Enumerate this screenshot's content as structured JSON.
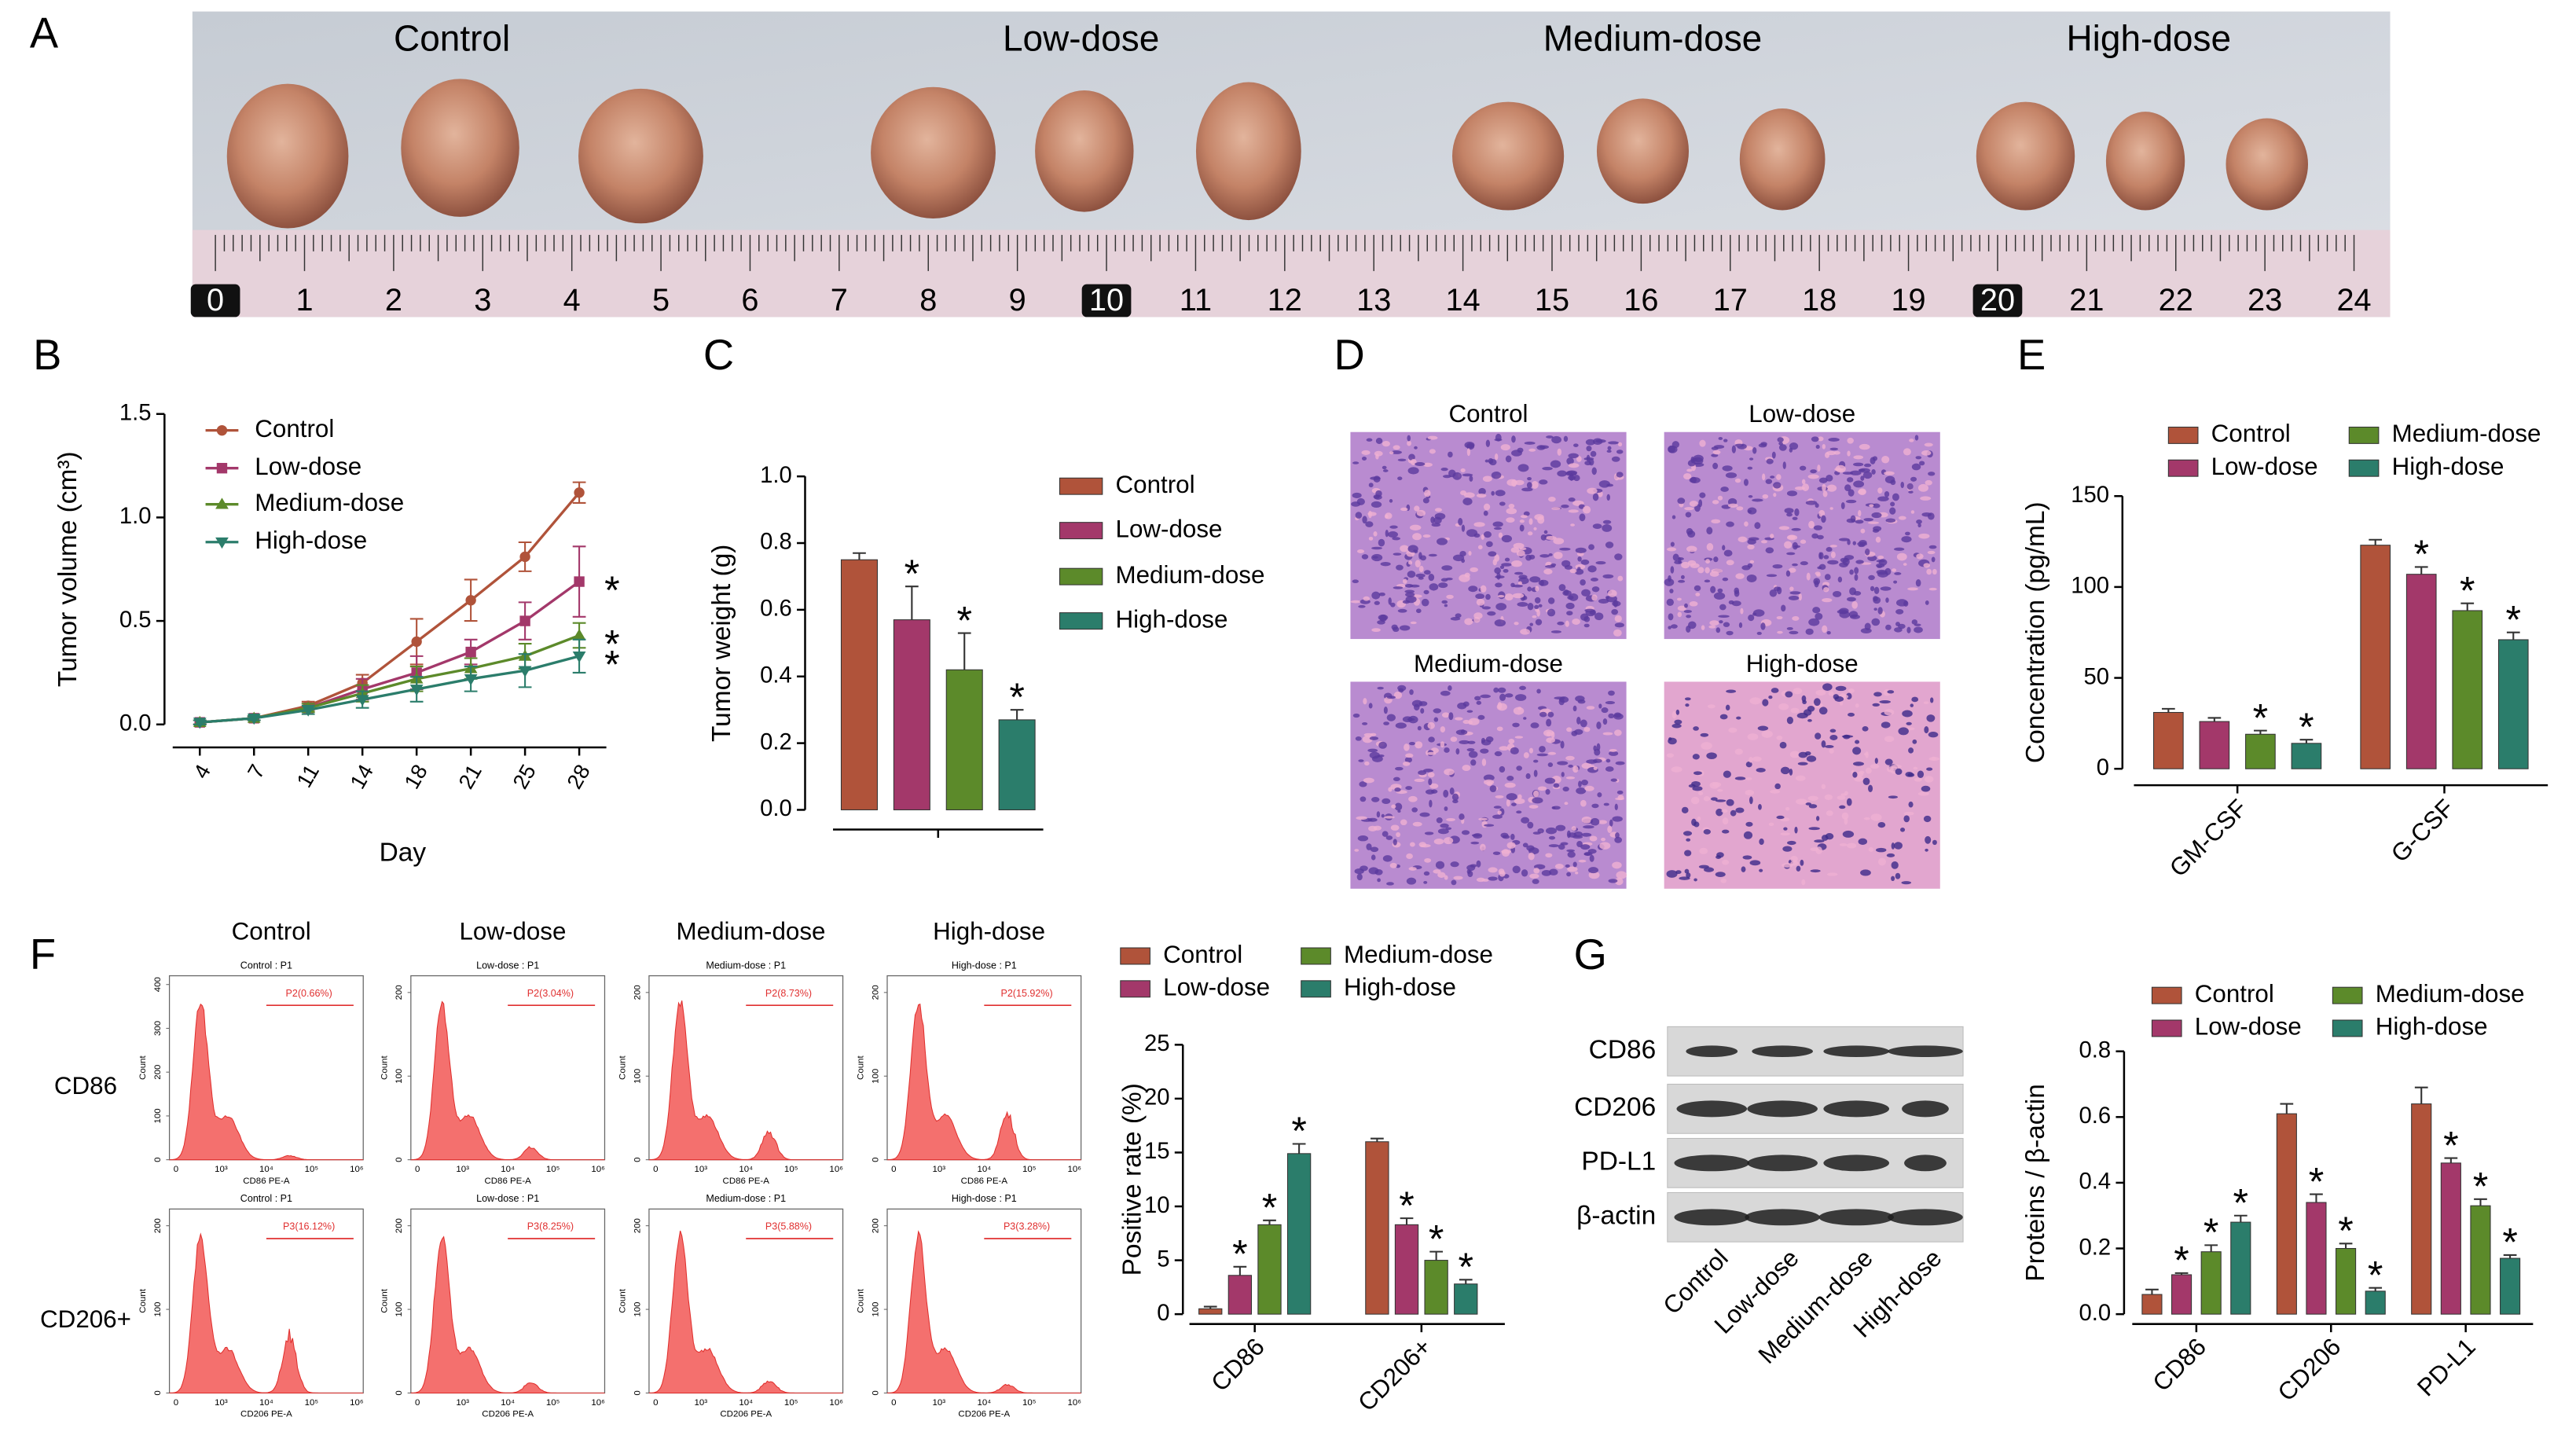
{
  "panel_labels": [
    "A",
    "B",
    "C",
    "D",
    "E",
    "F",
    "G"
  ],
  "photo": {
    "groups": [
      "Control",
      "Low-dose",
      "Medium-dose",
      "High-dose"
    ],
    "ruler": [
      0,
      1,
      2,
      3,
      4,
      5,
      6,
      7,
      8,
      9,
      10,
      11,
      12,
      13,
      14,
      15,
      16,
      17,
      18,
      19,
      20,
      21,
      22,
      23,
      24
    ]
  },
  "histology": {
    "labels": [
      "Control",
      "Low-dose",
      "Medium-dose",
      "High-dose"
    ]
  },
  "flow": {
    "columns": [
      "Control",
      "Low-dose",
      "Medium-dose",
      "High-dose"
    ],
    "rows": [
      "CD86",
      "CD206+"
    ],
    "xticks": [
      "0",
      "10³",
      "10⁴",
      "10⁵",
      "10⁶"
    ],
    "ylabel": "Count",
    "plots": [
      [
        {
          "title": "Control : P1",
          "gate": "P2(0.66%)",
          "xlabel": "CD86 PE-A",
          "ylim": [
            0,
            420
          ],
          "yticks": [
            0,
            100,
            200,
            300,
            400
          ]
        },
        {
          "title": "Low-dose : P1",
          "gate": "P2(3.04%)",
          "xlabel": "CD86 PE-A",
          "ylim": [
            0,
            220
          ],
          "yticks": [
            0,
            100,
            200
          ]
        },
        {
          "title": "Medium-dose : P1",
          "gate": "P2(8.73%)",
          "xlabel": "CD86 PE-A",
          "ylim": [
            0,
            220
          ],
          "yticks": [
            0,
            100,
            200
          ]
        },
        {
          "title": "High-dose : P1",
          "gate": "P2(15.92%)",
          "xlabel": "CD86 PE-A",
          "ylim": [
            0,
            220
          ],
          "yticks": [
            0,
            100,
            200
          ]
        }
      ],
      [
        {
          "title": "Control : P1",
          "gate": "P3(16.12%)",
          "xlabel": "CD206 PE-A",
          "ylim": [
            0,
            220
          ],
          "yticks": [
            0,
            100,
            200
          ]
        },
        {
          "title": "Low-dose : P1",
          "gate": "P3(8.25%)",
          "xlabel": "CD206 PE-A",
          "ylim": [
            0,
            220
          ],
          "yticks": [
            0,
            100,
            200
          ]
        },
        {
          "title": "Medium-dose : P1",
          "gate": "P3(5.88%)",
          "xlabel": "CD206 PE-A",
          "ylim": [
            0,
            220
          ],
          "yticks": [
            0,
            100,
            200
          ]
        },
        {
          "title": "High-dose : P1",
          "gate": "P3(3.28%)",
          "xlabel": "CD206 PE-A",
          "ylim": [
            0,
            220
          ],
          "yticks": [
            0,
            100,
            200
          ]
        }
      ]
    ]
  },
  "blot": {
    "proteins": [
      "CD86",
      "CD206",
      "PD-L1",
      "β-actin"
    ],
    "lanes": [
      "Control",
      "Low-dose",
      "Medium-dose",
      "High-dose"
    ]
  },
  "chart_data": [
    {
      "type": "line",
      "xlabel": "Day",
      "ylabel": "Tumor volume (cm³)",
      "categories": [
        "4",
        "7",
        "11",
        "14",
        "18",
        "21",
        "25",
        "28"
      ],
      "ylim": [
        0,
        1.5
      ],
      "yticks": [
        {
          "value": 0,
          "label": "0.0"
        },
        0.5,
        {
          "value": 1,
          "label": "1.0"
        },
        1.5
      ],
      "series": [
        {
          "name": "Control",
          "color": "#b0533a",
          "values": [
            0.01,
            0.03,
            0.09,
            0.2,
            0.4,
            0.6,
            0.81,
            1.12
          ],
          "errors": [
            0.01,
            0.01,
            0.02,
            0.04,
            0.11,
            0.1,
            0.07,
            0.05
          ]
        },
        {
          "name": "Low-dose",
          "color": "#a3386a",
          "values": [
            0.01,
            0.03,
            0.08,
            0.17,
            0.25,
            0.35,
            0.5,
            0.69
          ],
          "errors": [
            0.01,
            0.01,
            0.02,
            0.05,
            0.08,
            0.06,
            0.09,
            0.17
          ],
          "annotations": [
            null,
            null,
            null,
            null,
            null,
            null,
            null,
            "*"
          ]
        },
        {
          "name": "Medium-dose",
          "color": "#5c8a2a",
          "values": [
            0.01,
            0.03,
            0.08,
            0.15,
            0.22,
            0.27,
            0.33,
            0.43
          ],
          "errors": [
            0.01,
            0.01,
            0.02,
            0.04,
            0.06,
            0.05,
            0.06,
            0.06
          ],
          "annotations": [
            null,
            null,
            null,
            null,
            null,
            null,
            null,
            "*"
          ]
        },
        {
          "name": "High-dose",
          "color": "#2b7d6b",
          "values": [
            0.01,
            0.03,
            0.07,
            0.12,
            0.17,
            0.22,
            0.26,
            0.33
          ],
          "errors": [
            0.01,
            0.01,
            0.02,
            0.04,
            0.06,
            0.06,
            0.08,
            0.08
          ],
          "annotations": [
            null,
            null,
            null,
            null,
            null,
            null,
            null,
            "*"
          ]
        }
      ]
    },
    {
      "type": "bar",
      "ylabel": "Tumor weight (g)",
      "categories": [
        null
      ],
      "ylim": [
        0,
        1
      ],
      "yticks": [
        {
          "value": 0,
          "label": "0.0"
        },
        0.2,
        0.4,
        0.6,
        0.8,
        {
          "value": 1,
          "label": "1.0"
        }
      ],
      "series": [
        {
          "name": "Control",
          "color": "#b0533a",
          "values": [
            0.75
          ],
          "errors": [
            0.02
          ]
        },
        {
          "name": "Low-dose",
          "color": "#a3386a",
          "values": [
            0.57
          ],
          "errors": [
            0.1
          ],
          "annotations": [
            "*"
          ]
        },
        {
          "name": "Medium-dose",
          "color": "#5c8a2a",
          "values": [
            0.42
          ],
          "errors": [
            0.11
          ],
          "annotations": [
            "*"
          ]
        },
        {
          "name": "High-dose",
          "color": "#2b7d6b",
          "values": [
            0.27
          ],
          "errors": [
            0.03
          ],
          "annotations": [
            "*"
          ]
        }
      ]
    },
    {
      "type": "bar",
      "ylabel": "Concentration (pg/mL)",
      "categories": [
        "GM-CSF",
        "G-CSF"
      ],
      "ylim": [
        0,
        150
      ],
      "yticks": [
        0,
        50,
        100,
        150
      ],
      "series": [
        {
          "name": "Control",
          "color": "#b0533a",
          "values": [
            31,
            123
          ],
          "errors": [
            2,
            3
          ]
        },
        {
          "name": "Low-dose",
          "color": "#a3386a",
          "values": [
            26,
            107
          ],
          "errors": [
            2,
            4
          ],
          "annotations": [
            null,
            "*"
          ]
        },
        {
          "name": "Medium-dose",
          "color": "#5c8a2a",
          "values": [
            19,
            87
          ],
          "errors": [
            2,
            4
          ],
          "annotations": [
            "*",
            "*"
          ]
        },
        {
          "name": "High-dose",
          "color": "#2b7d6b",
          "values": [
            14,
            71
          ],
          "errors": [
            2,
            4
          ],
          "annotations": [
            "*",
            "*"
          ]
        }
      ]
    },
    {
      "type": "bar",
      "ylabel": "Positive rate (%)",
      "categories": [
        "CD86",
        "CD206+"
      ],
      "ylim": [
        0,
        25
      ],
      "yticks": [
        0,
        5,
        10,
        15,
        20,
        25
      ],
      "series": [
        {
          "name": "Control",
          "color": "#b0533a",
          "values": [
            0.5,
            16
          ],
          "errors": [
            0.2,
            0.3
          ]
        },
        {
          "name": "Low-dose",
          "color": "#a3386a",
          "values": [
            3.6,
            8.3
          ],
          "errors": [
            0.8,
            0.6
          ],
          "annotations": [
            "*",
            "*"
          ]
        },
        {
          "name": "Medium-dose",
          "color": "#5c8a2a",
          "values": [
            8.3,
            5
          ],
          "errors": [
            0.4,
            0.8
          ],
          "annotations": [
            "*",
            "*"
          ]
        },
        {
          "name": "High-dose",
          "color": "#2b7d6b",
          "values": [
            14.9,
            2.8
          ],
          "errors": [
            0.9,
            0.4
          ],
          "annotations": [
            "*",
            "*"
          ]
        }
      ]
    },
    {
      "type": "bar",
      "ylabel": "Proteins / β-actin",
      "categories": [
        "CD86",
        "CD206",
        "PD-L1"
      ],
      "ylim": [
        0,
        0.8
      ],
      "yticks": [
        {
          "value": 0,
          "label": "0.0"
        },
        0.2,
        0.4,
        0.6,
        0.8
      ],
      "series": [
        {
          "name": "Control",
          "color": "#b0533a",
          "values": [
            0.06,
            0.61,
            0.64
          ],
          "errors": [
            0.015,
            0.03,
            0.05
          ]
        },
        {
          "name": "Low-dose",
          "color": "#a3386a",
          "values": [
            0.12,
            0.34,
            0.46
          ],
          "errors": [
            0.005,
            0.025,
            0.015
          ],
          "annotations": [
            "*",
            "*",
            "*"
          ]
        },
        {
          "name": "Medium-dose",
          "color": "#5c8a2a",
          "values": [
            0.19,
            0.2,
            0.33
          ],
          "errors": [
            0.02,
            0.015,
            0.02
          ],
          "annotations": [
            "*",
            "*",
            "*"
          ]
        },
        {
          "name": "High-dose",
          "color": "#2b7d6b",
          "values": [
            0.28,
            0.07,
            0.17
          ],
          "errors": [
            0.02,
            0.01,
            0.01
          ],
          "annotations": [
            "*",
            "*",
            "*"
          ]
        }
      ]
    }
  ]
}
